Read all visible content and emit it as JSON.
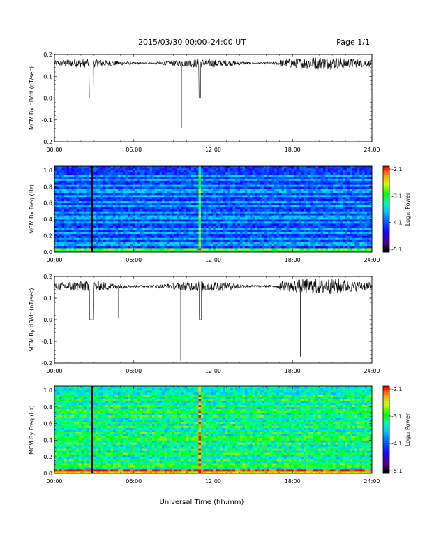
{
  "header": {
    "date_range": "2015/03/30   00:00–24:00 UT",
    "page": "Page 1/1"
  },
  "x_axis": {
    "label": "Universal Time (hh:mm)",
    "tick_labels": [
      "00:00",
      "06:00",
      "12:00",
      "18:00",
      "24:00"
    ]
  },
  "colorbar": {
    "label": "Log₁₀ Power",
    "tick_labels": [
      "-2.1",
      "-3.1",
      "-4.1",
      "-5.1"
    ],
    "colors": [
      "#ff0000",
      "#ff8000",
      "#ffff00",
      "#80ff00",
      "#00ff00",
      "#00ffc0",
      "#00c0ff",
      "#0060ff",
      "#2000ff",
      "#6000a0",
      "#000000"
    ]
  },
  "panels": {
    "bx_series": {
      "ylabel": "MCM Bx dB/dt (nT/sec)",
      "y_tick_labels": [
        "0.2",
        "0.1",
        "0.0",
        "-0.1",
        "-0.2"
      ]
    },
    "bx_spectrogram": {
      "ylabel": "MCM Bx Freq (Hz)",
      "y_tick_labels": [
        "1.0",
        "0.8",
        "0.6",
        "0.4",
        "0.2",
        "0.0"
      ]
    },
    "by_series": {
      "ylabel": "MCM By dB/dt (nT/sec)",
      "y_tick_labels": [
        "0.2",
        "0.1",
        "0.0",
        "-0.1",
        "-0.2"
      ]
    },
    "by_spectrogram": {
      "ylabel": "MCM By Freq (Hz)",
      "y_tick_labels": [
        "1.0",
        "0.8",
        "0.6",
        "0.4",
        "0.2",
        "0.0"
      ]
    }
  },
  "chart_data": [
    {
      "type": "line",
      "ylabel": "MCM Bx dB/dt (nT/sec)",
      "xlabel": "",
      "xlim": [
        0,
        24
      ],
      "ylim": [
        -0.2,
        0.2
      ],
      "x_unit": "hours UT",
      "baseline": 0.16,
      "noise_amplitude": 0.02,
      "dropouts": [
        {
          "start": 2.62,
          "end": 2.95,
          "value": 0.0
        },
        {
          "start": 10.92,
          "end": 11.05,
          "value": 0.0
        }
      ],
      "spikes": [
        {
          "x": 9.6,
          "value": -0.14
        },
        {
          "x": 18.65,
          "value": -0.2
        }
      ]
    },
    {
      "type": "heatmap",
      "ylabel": "MCM Bx Freq (Hz)",
      "xlabel": "",
      "xlim": [
        0,
        24
      ],
      "ylim": [
        0,
        1.05
      ],
      "clim": [
        -5.1,
        -2.1
      ],
      "dominant_level": -4.2,
      "harmonic_lines_hz": [
        0.04,
        0.1,
        0.165,
        0.23,
        0.295,
        0.36,
        0.425,
        0.49,
        0.555,
        0.62,
        0.685,
        0.75,
        0.815,
        0.88,
        0.945
      ],
      "vertical_features": [
        {
          "x": 2.8,
          "type": "gap"
        },
        {
          "x": 11.0,
          "type": "broadband"
        }
      ]
    },
    {
      "type": "line",
      "ylabel": "MCM By dB/dt (nT/sec)",
      "xlabel": "",
      "xlim": [
        0,
        24
      ],
      "ylim": [
        -0.2,
        0.2
      ],
      "x_unit": "hours UT",
      "baseline": 0.155,
      "noise_amplitude": 0.025,
      "dropouts": [
        {
          "start": 2.65,
          "end": 2.98,
          "value": 0.0
        },
        {
          "start": 10.95,
          "end": 11.1,
          "value": 0.0
        }
      ],
      "spikes": [
        {
          "x": 4.85,
          "value": 0.01
        },
        {
          "x": 9.55,
          "value": -0.19
        },
        {
          "x": 18.6,
          "value": -0.17
        }
      ]
    },
    {
      "type": "heatmap",
      "ylabel": "MCM By Freq (Hz)",
      "xlabel": "Universal Time (hh:mm)",
      "xlim": [
        0,
        24
      ],
      "ylim": [
        0,
        1.05
      ],
      "clim": [
        -5.1,
        -2.1
      ],
      "dominant_level": -3.5,
      "harmonic_lines_hz": [
        0.04,
        0.1,
        0.165,
        0.23,
        0.295,
        0.36,
        0.425,
        0.49,
        0.555,
        0.62,
        0.685,
        0.75,
        0.815,
        0.88,
        0.945
      ],
      "vertical_features": [
        {
          "x": 2.8,
          "type": "gap"
        },
        {
          "x": 11.0,
          "type": "broadband"
        }
      ]
    }
  ]
}
